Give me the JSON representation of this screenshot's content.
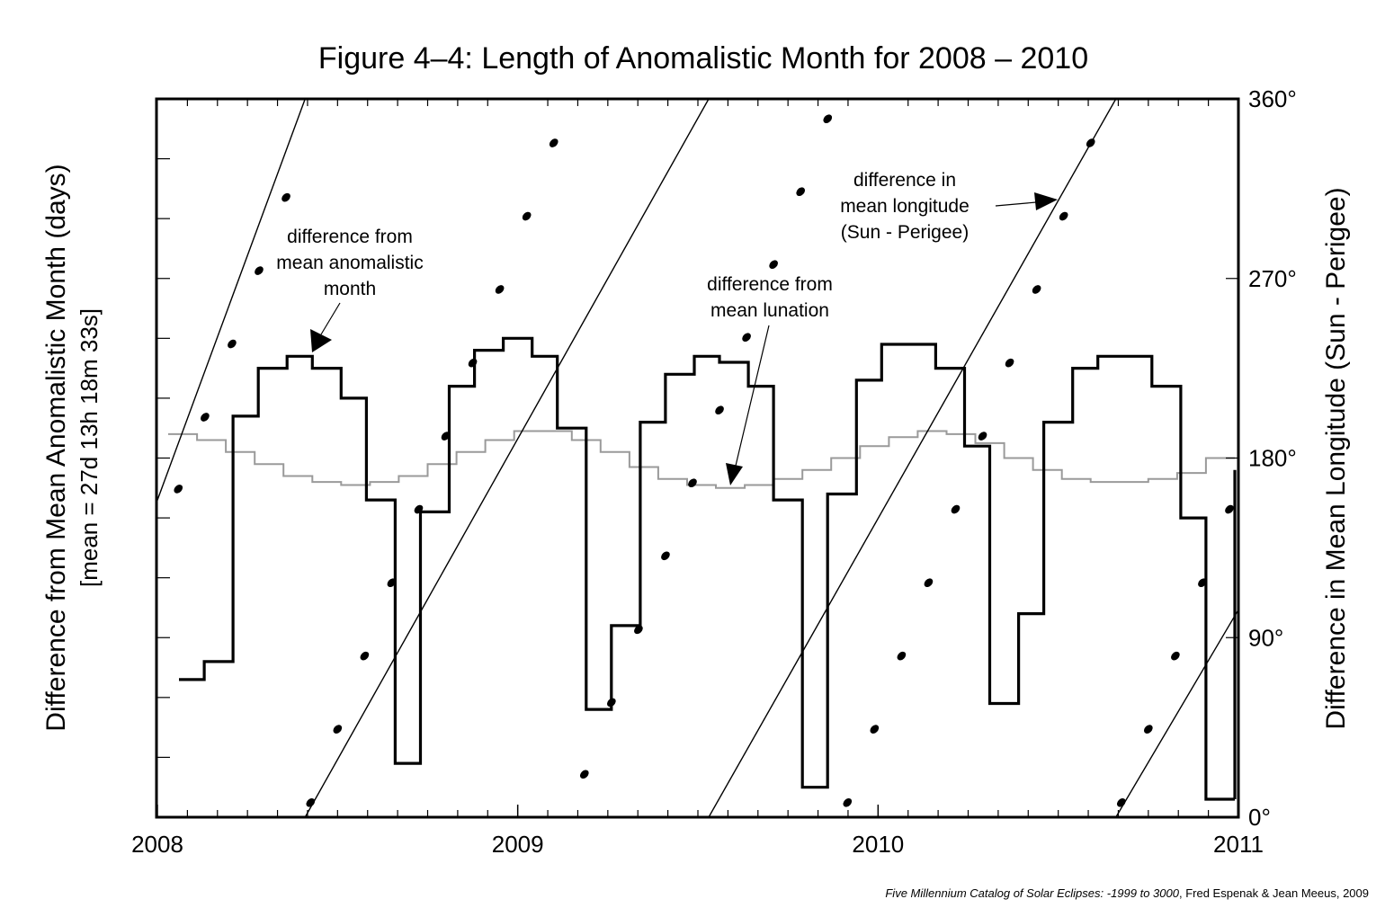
{
  "chart_data": {
    "type": "line",
    "title": "Figure 4–4: Length of  Anomalistic Month for 2008 – 2010",
    "ylabel_left": "Difference from Mean Anomalistic Month (days)",
    "ylabel_left_sub": "[mean = 27d 13h 18m 33s]",
    "ylabel_right": "Difference in Mean Longitude (Sun - Perigee)",
    "x_ticks": [
      "2008",
      "2009",
      "2010",
      "2011"
    ],
    "xlim": [
      2008,
      2011
    ],
    "ylim_left": [
      0,
      12
    ],
    "ylim_right": [
      0,
      360
    ],
    "right_ticks": [
      "0°",
      "90°",
      "180°",
      "270°",
      "360°"
    ],
    "grid": false,
    "series": [
      {
        "step_edges": [
          2008.06,
          2008.13,
          2008.21,
          2008.28,
          2008.36,
          2008.43,
          2008.51,
          2008.58,
          2008.66,
          2008.73,
          2008.81,
          2008.88,
          2008.96,
          2009.04,
          2009.11,
          2009.19,
          2009.26,
          2009.34,
          2009.41,
          2009.49,
          2009.56,
          2009.64,
          2009.71,
          2009.79,
          2009.86,
          2009.94,
          2010.01,
          2010.09,
          2010.16,
          2010.24,
          2010.31,
          2010.39,
          2010.46,
          2010.54,
          2010.61,
          2010.69,
          2010.76,
          2010.84,
          2010.91,
          2010.99
        ],
        "values": [
          2.3,
          2.6,
          6.7,
          7.5,
          7.7,
          7.5,
          7.0,
          5.3,
          0.9,
          5.1,
          7.2,
          7.8,
          8.0,
          7.7,
          6.5,
          1.8,
          3.2,
          6.6,
          7.4,
          7.7,
          7.6,
          7.2,
          5.3,
          0.5,
          5.4,
          7.3,
          7.9,
          7.9,
          7.5,
          6.2,
          1.9,
          3.4,
          6.6,
          7.5,
          7.7,
          7.7,
          7.2,
          5.0,
          0.3
        ]
      },
      {
        "step_edges": [
          2008.03,
          2008.11,
          2008.19,
          2008.27,
          2008.35,
          2008.43,
          2008.51,
          2008.59,
          2008.67,
          2008.75,
          2008.83,
          2008.91,
          2008.99,
          2009.07,
          2009.15,
          2009.23,
          2009.31,
          2009.39,
          2009.47,
          2009.55,
          2009.63,
          2009.71,
          2009.79,
          2009.87,
          2009.95,
          2010.03,
          2010.11,
          2010.19,
          2010.27,
          2010.35,
          2010.43,
          2010.51,
          2010.59,
          2010.67,
          2010.75,
          2010.83,
          2010.91,
          2010.99
        ],
        "values": [
          6.4,
          6.3,
          6.1,
          5.9,
          5.7,
          5.6,
          5.55,
          5.6,
          5.7,
          5.9,
          6.1,
          6.3,
          6.45,
          6.45,
          6.3,
          6.1,
          5.85,
          5.65,
          5.55,
          5.5,
          5.55,
          5.65,
          5.8,
          6.0,
          6.2,
          6.35,
          6.45,
          6.4,
          6.25,
          6.0,
          5.8,
          5.65,
          5.6,
          5.6,
          5.65,
          5.75,
          6.0
        ]
      },
      {
        "segments": [
          [
            [
              2007.99,
              154
            ],
            [
              2008.41,
              360
            ]
          ],
          [
            [
              2008.41,
              0
            ],
            [
              2009.53,
              360
            ]
          ],
          [
            [
              2009.53,
              0
            ],
            [
              2010.66,
              360
            ]
          ],
          [
            [
              2010.66,
              0
            ],
            [
              2011.0,
              104
            ]
          ]
        ],
        "dots": [
          [
            2008.058,
            164.5
          ],
          [
            2008.132,
            200.5
          ],
          [
            2008.207,
            237.2
          ],
          [
            2008.282,
            273.9
          ],
          [
            2008.357,
            310.6
          ],
          [
            2008.425,
            7.3
          ],
          [
            2008.5,
            44.1
          ],
          [
            2008.575,
            80.8
          ],
          [
            2008.65,
            117.5
          ],
          [
            2008.725,
            154.3
          ],
          [
            2008.8,
            191.0
          ],
          [
            2008.875,
            227.7
          ],
          [
            2008.95,
            264.5
          ],
          [
            2009.025,
            301.2
          ],
          [
            2009.1,
            337.9
          ],
          [
            2009.185,
            21.5
          ],
          [
            2009.26,
            57.5
          ],
          [
            2009.335,
            94.0
          ],
          [
            2009.41,
            131.0
          ],
          [
            2009.485,
            167.5
          ],
          [
            2009.56,
            204.0
          ],
          [
            2009.635,
            240.5
          ],
          [
            2009.71,
            277.0
          ],
          [
            2009.785,
            313.5
          ],
          [
            2009.86,
            350.0
          ],
          [
            2009.915,
            7.3
          ],
          [
            2009.99,
            44.1
          ],
          [
            2010.065,
            80.8
          ],
          [
            2010.14,
            117.5
          ],
          [
            2010.215,
            154.3
          ],
          [
            2010.29,
            191.0
          ],
          [
            2010.365,
            227.7
          ],
          [
            2010.44,
            264.5
          ],
          [
            2010.515,
            301.2
          ],
          [
            2010.59,
            337.9
          ],
          [
            2010.675,
            7.3
          ],
          [
            2010.75,
            44.1
          ],
          [
            2010.825,
            80.8
          ],
          [
            2010.9,
            117.5
          ],
          [
            2010.975,
            154.3
          ]
        ]
      }
    ]
  },
  "annotations": {
    "anomalistic": [
      "difference from",
      "mean anomalistic",
      "month"
    ],
    "lunation": [
      "difference from",
      "mean lunation"
    ],
    "longitude": [
      "difference in",
      "mean longitude",
      "(Sun - Perigee)"
    ]
  },
  "credit": {
    "italic": "Five Millennium Catalog of Solar Eclipses: -1999 to 3000",
    "plain": ", Fred Espenak & Jean Meeus, 2009"
  }
}
